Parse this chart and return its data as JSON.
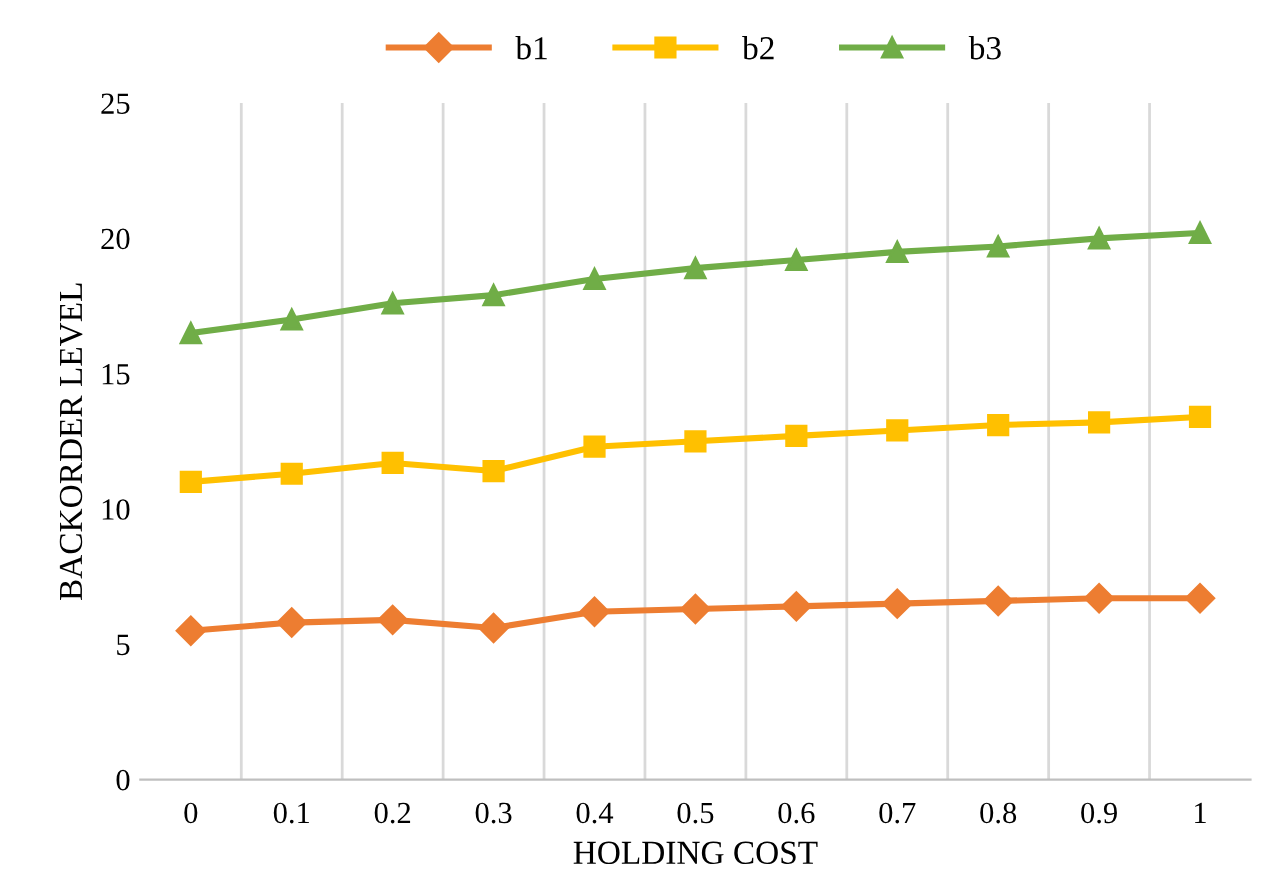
{
  "chart_data": {
    "type": "line",
    "xlabel": "HOLDING COST",
    "ylabel": "BACKORDER LEVEL",
    "categories": [
      "0",
      "0.1",
      "0.2",
      "0.3",
      "0.4",
      "0.5",
      "0.6",
      "0.7",
      "0.8",
      "0.9",
      "1"
    ],
    "series": [
      {
        "name": "b1",
        "color": "#ed7d31",
        "marker": "diamond",
        "values": [
          5.5,
          5.8,
          5.9,
          5.6,
          6.2,
          6.3,
          6.4,
          6.5,
          6.6,
          6.7,
          6.7
        ]
      },
      {
        "name": "b2",
        "color": "#ffc000",
        "marker": "square",
        "values": [
          11.0,
          11.3,
          11.7,
          11.4,
          12.3,
          12.5,
          12.7,
          12.9,
          13.1,
          13.2,
          13.4
        ]
      },
      {
        "name": "b3",
        "color": "#70ad47",
        "marker": "triangle",
        "values": [
          16.5,
          17.0,
          17.6,
          17.9,
          18.5,
          18.9,
          19.2,
          19.5,
          19.7,
          20.0,
          20.2
        ]
      }
    ],
    "ylim": [
      0,
      25
    ],
    "yticks": [
      0,
      5,
      10,
      15,
      20,
      25
    ],
    "grid": "x",
    "legend": "top",
    "line_style": "solid"
  }
}
